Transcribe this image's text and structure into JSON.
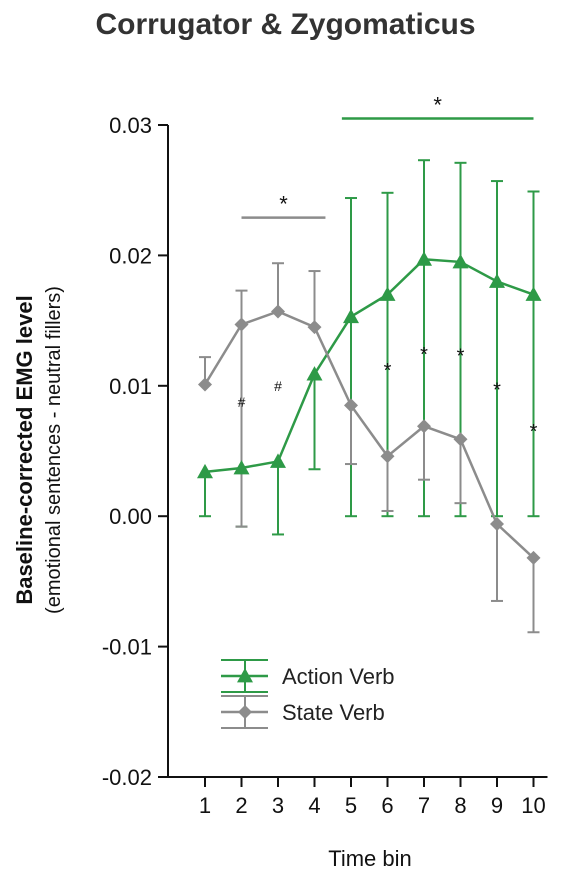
{
  "chart_data": {
    "type": "line",
    "title": "Corrugator & Zygomaticus",
    "xlabel": "Time bin",
    "ylabel": "Baseline-corrected EMG level",
    "ylabel_sub": "(emotional sentences - neutral fillers)",
    "x": [
      1,
      2,
      3,
      4,
      5,
      6,
      7,
      8,
      9,
      10
    ],
    "xticks": [
      "1",
      "2",
      "3",
      "4",
      "5",
      "6",
      "7",
      "8",
      "9",
      "10"
    ],
    "ylim": [
      -0.02,
      0.03
    ],
    "yticks": [
      "-0.02",
      "-0.01",
      "0.00",
      "0.01",
      "0.02",
      "0.03"
    ],
    "ytick_values": [
      -0.02,
      -0.01,
      0.0,
      0.01,
      0.02,
      0.03
    ],
    "legend_position": "bottom-center",
    "series": [
      {
        "name": "Action Verb",
        "color": "#2e9a47",
        "marker": "triangle",
        "values": [
          0.0034,
          0.0037,
          0.0042,
          0.0109,
          0.0153,
          0.017,
          0.0197,
          0.0195,
          0.018,
          0.017
        ],
        "error_lower": [
          0.0034,
          0.0045,
          0.0056,
          0.0073,
          0.0153,
          0.017,
          0.0197,
          0.0195,
          0.018,
          0.017
        ],
        "error_upper": [
          0.0,
          0.0,
          0.0,
          0.0,
          0.0091,
          0.0078,
          0.0076,
          0.0076,
          0.0077,
          0.0079
        ],
        "error_direction": "down"
      },
      {
        "name": "State Verb",
        "color": "#8c8c8c",
        "marker": "diamond",
        "values": [
          0.0101,
          0.0147,
          0.0157,
          0.0145,
          0.0085,
          0.0046,
          0.0069,
          0.0059,
          -0.0006,
          -0.0032
        ],
        "error_lower": [
          0.0,
          0.0155,
          0.0,
          0.0,
          0.0045,
          0.0042,
          0.0041,
          0.0049,
          0.0059,
          0.0057
        ],
        "error_upper": [
          0.0021,
          0.0026,
          0.0037,
          0.0043,
          0.0,
          0.0,
          0.0,
          0.0,
          0.0,
          0.0
        ],
        "error_direction": "mixed"
      }
    ],
    "annotations": [
      {
        "text": "*",
        "x_from": 4.75,
        "x_to": 10,
        "y": 0.0305,
        "color": "#2e9a47",
        "type": "bracket"
      },
      {
        "text": "*",
        "x_from": 2,
        "x_to": 4.3,
        "y": 0.0229,
        "color": "#8c8c8c",
        "type": "bracket"
      },
      {
        "text": "#",
        "x": 2,
        "y": 0.009
      },
      {
        "text": "#",
        "x": 3,
        "y": 0.0102
      },
      {
        "text": "*",
        "x": 6,
        "y": 0.0113
      },
      {
        "text": "*",
        "x": 7,
        "y": 0.0125
      },
      {
        "text": "*",
        "x": 8,
        "y": 0.0124
      },
      {
        "text": "*",
        "x": 9,
        "y": 0.0098
      },
      {
        "text": "*",
        "x": 10,
        "y": 0.0066
      }
    ]
  }
}
